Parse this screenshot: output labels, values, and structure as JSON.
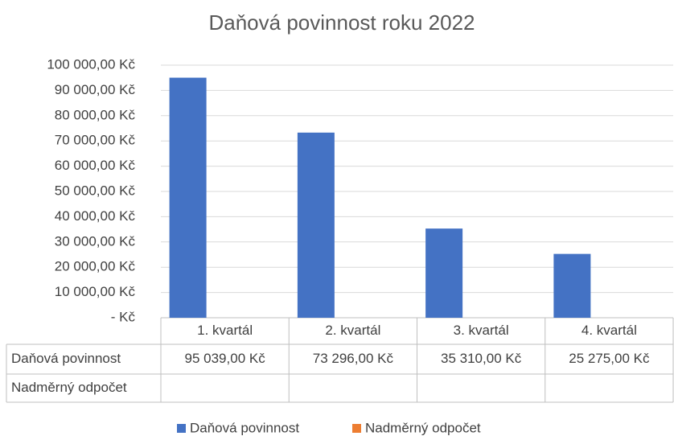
{
  "chart_data": {
    "type": "bar",
    "title": "Daňová povinnost roku 2022",
    "categories": [
      "1. kvartál",
      "2. kvartál",
      "3. kvartál",
      "4. kvartál"
    ],
    "series": [
      {
        "name": "Daňová povinnost",
        "color": "#4472c4",
        "values": [
          95039,
          73296,
          35310,
          25275
        ],
        "value_labels": [
          "95 039,00 Kč",
          "73 296,00 Kč",
          "35 310,00 Kč",
          "25 275,00 Kč"
        ]
      },
      {
        "name": "Nadměrný odpočet",
        "color": "#ed7d31",
        "values": [
          null,
          null,
          null,
          null
        ]
      }
    ],
    "ylim": [
      0,
      100000
    ],
    "yticks": [
      {
        "value": 0,
        "label": "-  Kč"
      },
      {
        "value": 10000,
        "label": "10 000,00 Kč"
      },
      {
        "value": 20000,
        "label": "20 000,00 Kč"
      },
      {
        "value": 30000,
        "label": "30 000,00 Kč"
      },
      {
        "value": 40000,
        "label": "40 000,00 Kč"
      },
      {
        "value": 50000,
        "label": "50 000,00 Kč"
      },
      {
        "value": 60000,
        "label": "60 000,00 Kč"
      },
      {
        "value": 70000,
        "label": "70 000,00 Kč"
      },
      {
        "value": 80000,
        "label": "80 000,00 Kč"
      },
      {
        "value": 90000,
        "label": "90 000,00 Kč"
      },
      {
        "value": 100000,
        "label": "100 000,00 Kč"
      }
    ],
    "grid": true,
    "legend": "bottom"
  }
}
